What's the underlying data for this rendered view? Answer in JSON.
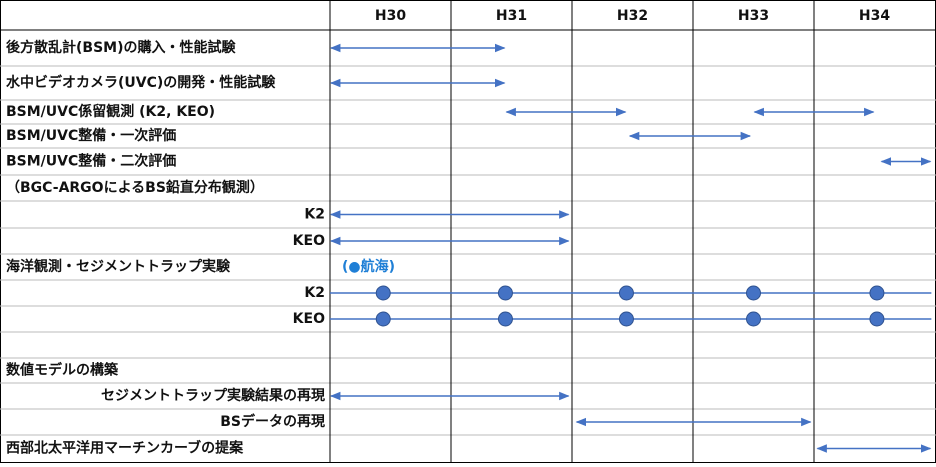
{
  "header": {
    "years": [
      "H30",
      "H31",
      "H32",
      "H33",
      "H34"
    ]
  },
  "voyage_note": "(●航海)",
  "rows": [
    {
      "label": "後方散乱計(BSM)の購入・性能試験",
      "align": "left",
      "arrows": [
        {
          "start": 0,
          "end": 1.45
        }
      ]
    },
    {
      "label": "水中ビデオカメラ(UVC)の開発・性能試験",
      "align": "left",
      "arrows": [
        {
          "start": 0,
          "end": 1.45
        }
      ]
    },
    {
      "label": "BSM/UVC係留観測 (K2, KEO)",
      "align": "left",
      "arrows": [
        {
          "start": 1.45,
          "end": 2.45
        },
        {
          "start": 3.5,
          "end": 4.5
        }
      ]
    },
    {
      "label": "BSM/UVC整備・一次評価",
      "align": "left",
      "arrows": [
        {
          "start": 2.47,
          "end": 3.48
        }
      ]
    },
    {
      "label": "BSM/UVC整備・二次評価",
      "align": "left",
      "arrows": [
        {
          "start": 4.55,
          "end": 4.97
        }
      ]
    },
    {
      "label": "（BGC-ARGOによるBS鉛直分布観測）",
      "align": "left"
    },
    {
      "label": "K2",
      "align": "right",
      "arrows": [
        {
          "start": 0,
          "end": 1.98
        }
      ]
    },
    {
      "label": "KEO",
      "align": "right",
      "arrows": [
        {
          "start": 0,
          "end": 1.98
        }
      ]
    },
    {
      "label": "海洋観測・セジメントトラップ実験",
      "align": "left"
    },
    {
      "label": "K2",
      "align": "right",
      "line": {
        "start": 0,
        "end": 4.97
      },
      "dots": [
        0.44,
        1.45,
        2.45,
        3.5,
        4.52
      ]
    },
    {
      "label": "KEO",
      "align": "right",
      "line": {
        "start": 0,
        "end": 4.97
      },
      "dots": [
        0.44,
        1.45,
        2.45,
        3.5,
        4.52
      ]
    },
    {
      "label": null,
      "align": "left"
    },
    {
      "label": "数値モデルの構築",
      "align": "left"
    },
    {
      "label": "セジメントトラップ実験結果の再現",
      "align": "right",
      "arrows": [
        {
          "start": 0,
          "end": 1.98
        }
      ]
    },
    {
      "label": "BSデータの再現",
      "align": "right",
      "arrows": [
        {
          "start": 2.03,
          "end": 3.98
        }
      ]
    },
    {
      "label": "西部北太平洋用マーチンカーブの提案",
      "align": "left",
      "arrows": [
        {
          "start": 4.02,
          "end": 4.97
        }
      ]
    }
  ]
}
